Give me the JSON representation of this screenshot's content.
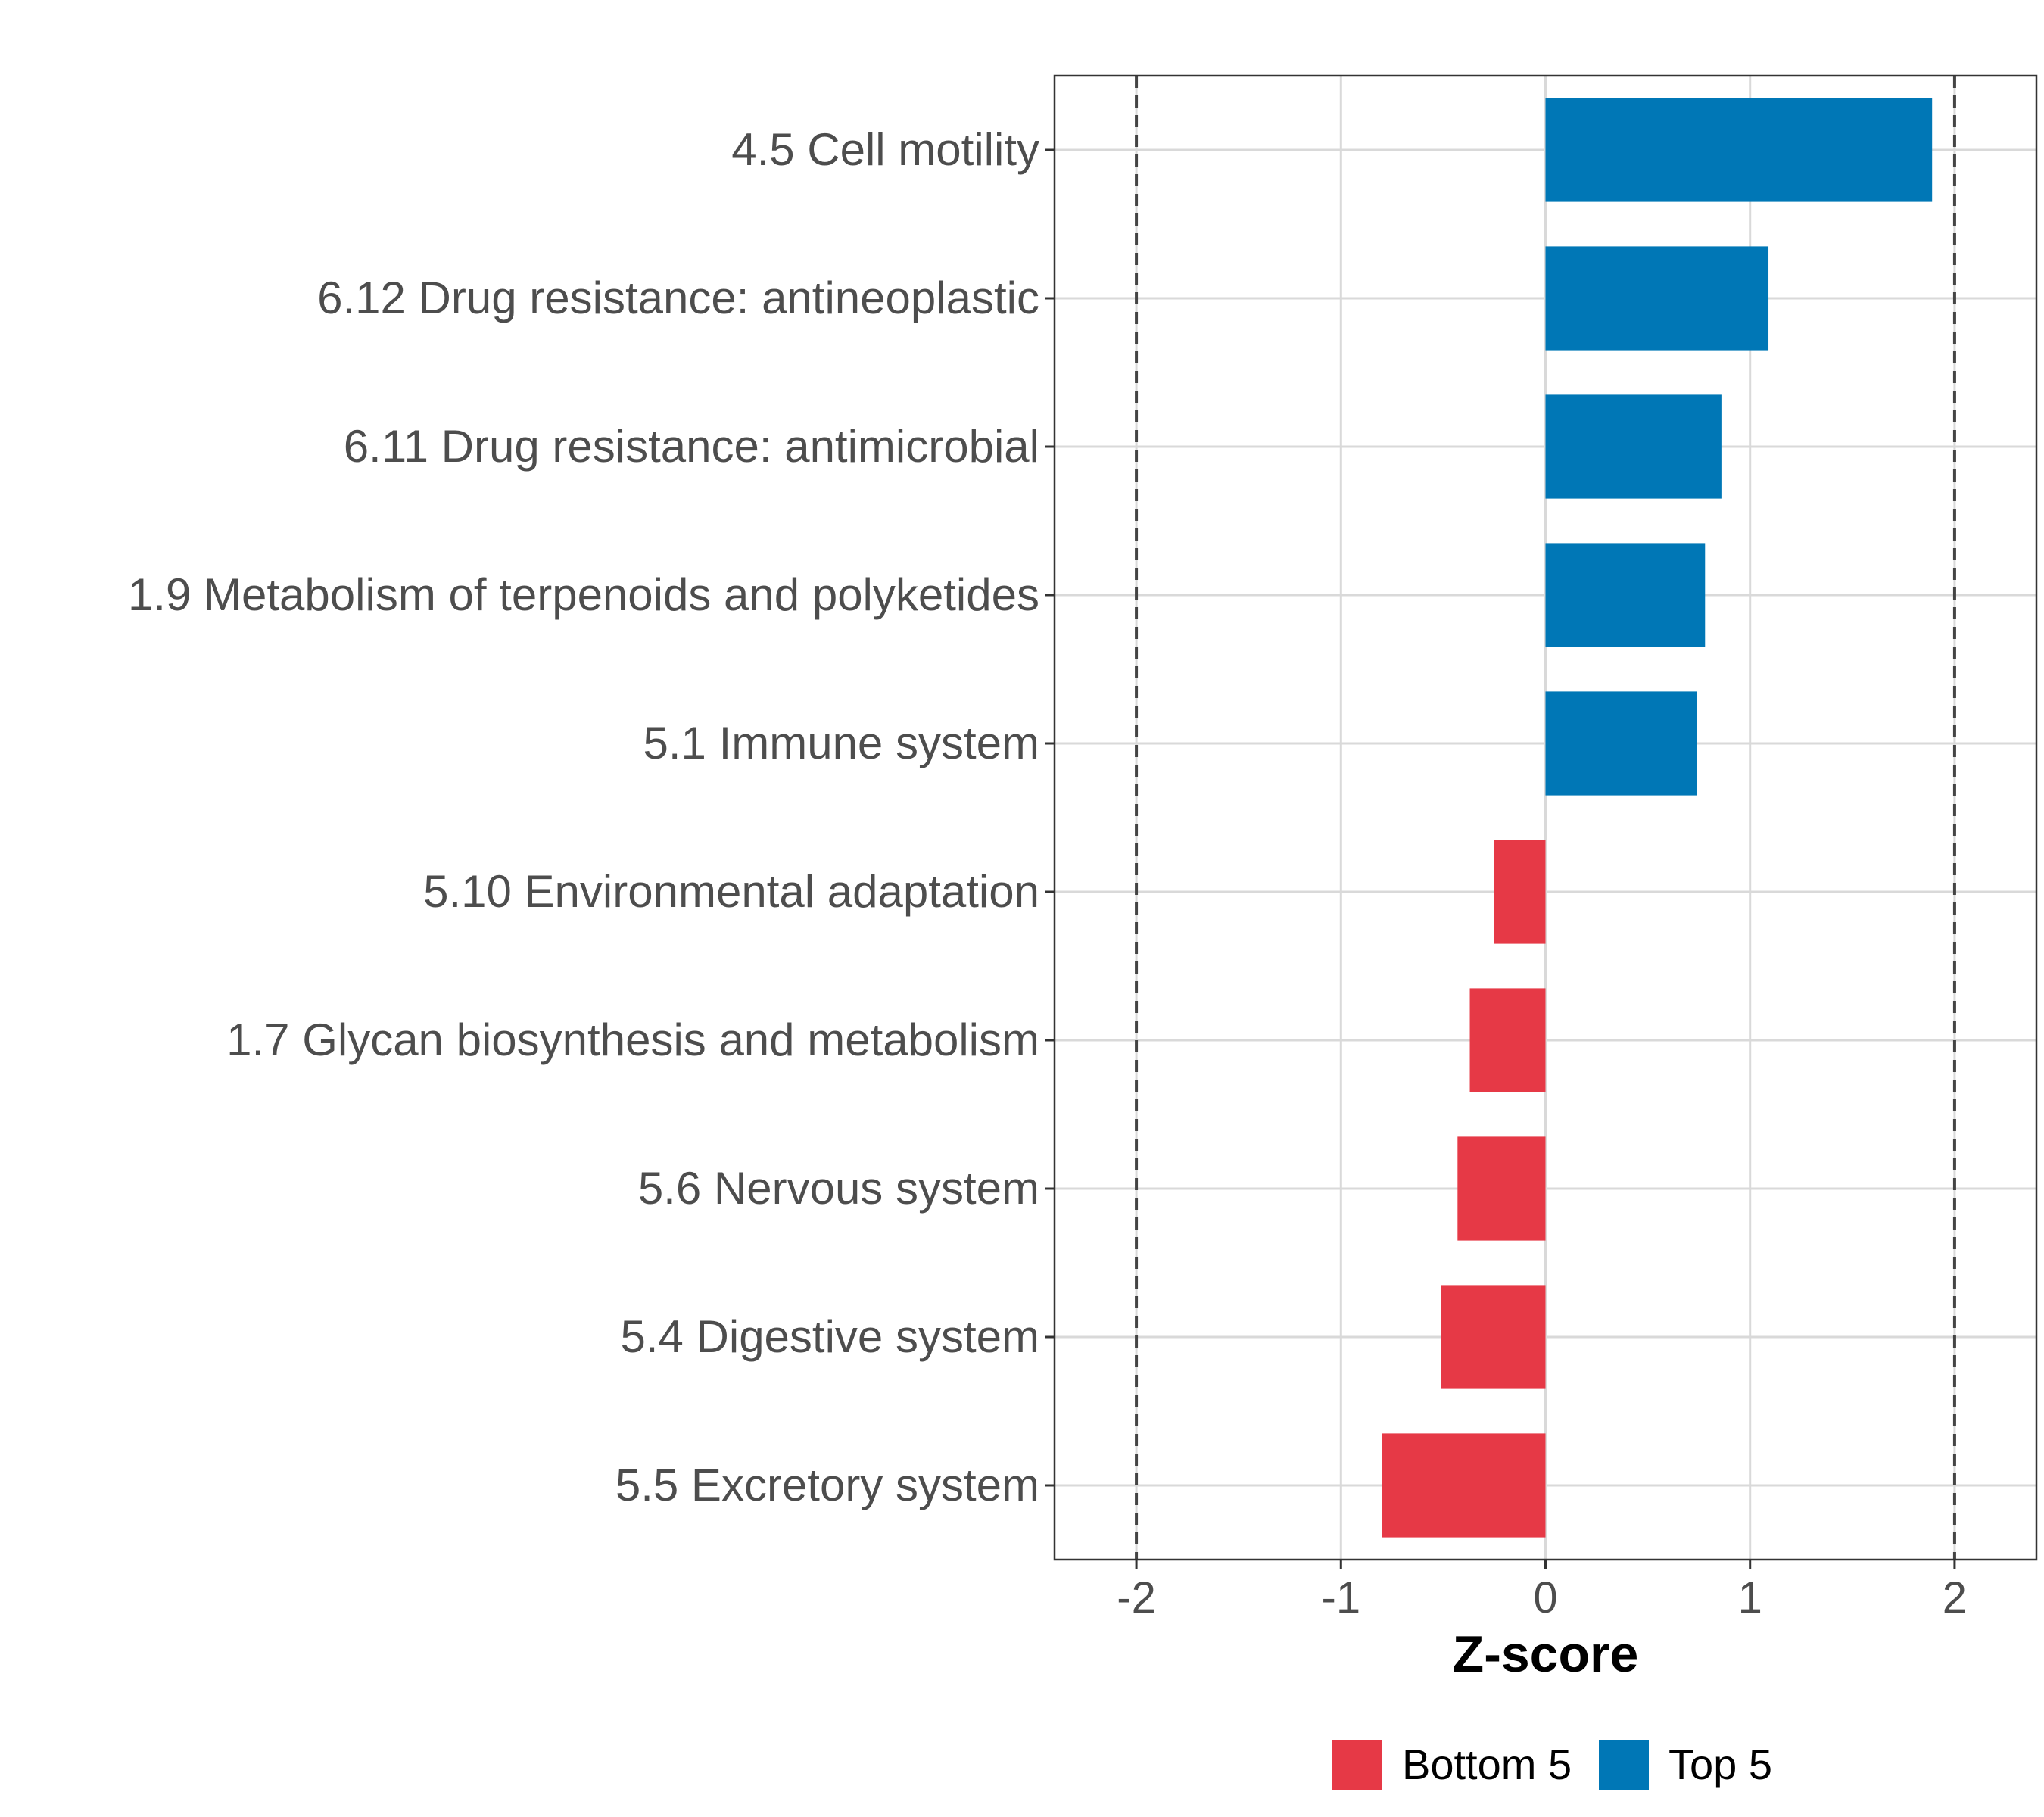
{
  "chart_data": {
    "type": "bar",
    "orientation": "horizontal",
    "title": "",
    "xlabel": "Z-score",
    "ylabel": "",
    "xlim": [
      -2.4,
      2.4
    ],
    "xticks": [
      -2,
      -1,
      0,
      1,
      2
    ],
    "xtick_labels": [
      "-2",
      "-1",
      "0",
      "1",
      "2"
    ],
    "reference_lines": [
      -2,
      2
    ],
    "grid": true,
    "legend_position": "bottom",
    "categories": [
      "4.5 Cell motility",
      "6.12 Drug resistance: antineoplastic",
      "6.11 Drug resistance: antimicrobial",
      "1.9 Metabolism of terpenoids and polyketides",
      "5.1 Immune system",
      "5.10 Environmental adaptation",
      "1.7 Glycan biosynthesis and metabolism",
      "5.6 Nervous system",
      "5.4 Digestive system",
      "5.5 Excretory system"
    ],
    "values": [
      1.89,
      1.09,
      0.86,
      0.78,
      0.74,
      -0.25,
      -0.37,
      -0.43,
      -0.51,
      -0.8
    ],
    "groups": [
      "Top 5",
      "Top 5",
      "Top 5",
      "Top 5",
      "Top 5",
      "Bottom 5",
      "Bottom 5",
      "Bottom 5",
      "Bottom 5",
      "Bottom 5"
    ],
    "legend": [
      {
        "name": "Bottom 5",
        "color": "#e63946"
      },
      {
        "name": "Top 5",
        "color": "#0077b6"
      }
    ]
  }
}
